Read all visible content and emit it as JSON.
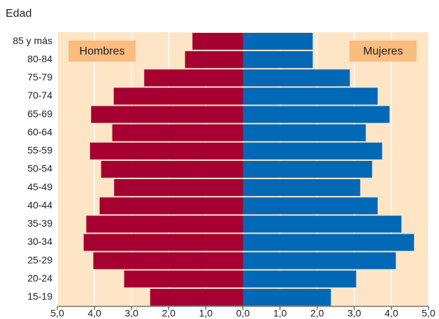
{
  "chart_data": {
    "type": "pyramid",
    "title": "Edad",
    "categories": [
      "85 y más",
      "80-84",
      "75-79",
      "70-74",
      "65-69",
      "60-64",
      "55-59",
      "50-54",
      "45-49",
      "40-44",
      "35-39",
      "30-34",
      "25-29",
      "20-24",
      "15-19"
    ],
    "series": [
      {
        "name": "Hombres",
        "color": "#a50031",
        "values": [
          1.36,
          1.56,
          2.66,
          3.48,
          4.09,
          3.52,
          4.12,
          3.82,
          3.47,
          3.86,
          4.22,
          4.29,
          4.03,
          3.2,
          2.5
        ]
      },
      {
        "name": "Mujeres",
        "color": "#0068b4",
        "values": [
          1.88,
          1.88,
          2.88,
          3.63,
          3.95,
          3.31,
          3.75,
          3.48,
          3.16,
          3.63,
          4.27,
          4.61,
          4.12,
          3.05,
          2.37
        ]
      }
    ],
    "xlim": [
      -5,
      5
    ],
    "xticks": [
      {
        "value": -5,
        "label": "5,0"
      },
      {
        "value": -4,
        "label": "4,0"
      },
      {
        "value": -3,
        "label": "3,0"
      },
      {
        "value": -2,
        "label": "2,0"
      },
      {
        "value": -1,
        "label": "1,0"
      },
      {
        "value": 0,
        "label": "0,0"
      },
      {
        "value": 1,
        "label": "1,0"
      },
      {
        "value": 2,
        "label": "2,0"
      },
      {
        "value": 3,
        "label": "3,0"
      },
      {
        "value": 4,
        "label": "4,0"
      },
      {
        "value": 5,
        "label": "5,0"
      }
    ],
    "grid": true
  }
}
